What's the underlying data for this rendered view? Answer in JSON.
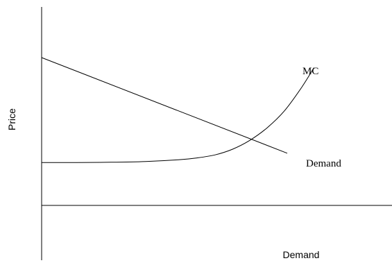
{
  "chart_data": {
    "type": "line",
    "title": "",
    "xlabel": "Demand",
    "ylabel": "Price",
    "xlim": [
      0,
      1
    ],
    "ylim": [
      0,
      1
    ],
    "grid": false,
    "legend": "none",
    "series": [
      {
        "name": "Demand",
        "color": "#000000",
        "points": [
          [
            0,
            1.0
          ],
          [
            0.708,
            0.353
          ]
        ]
      },
      {
        "name": "MC",
        "color": "#000000",
        "points": [
          [
            0,
            0.29
          ],
          [
            0.1,
            0.29
          ],
          [
            0.2,
            0.292
          ],
          [
            0.3,
            0.297
          ],
          [
            0.4,
            0.31
          ],
          [
            0.45,
            0.322
          ],
          [
            0.5,
            0.342
          ],
          [
            0.55,
            0.38
          ],
          [
            0.6,
            0.44
          ],
          [
            0.65,
            0.525
          ],
          [
            0.7,
            0.64
          ],
          [
            0.75,
            0.8
          ],
          [
            0.785,
            0.932
          ]
        ]
      }
    ]
  }
}
